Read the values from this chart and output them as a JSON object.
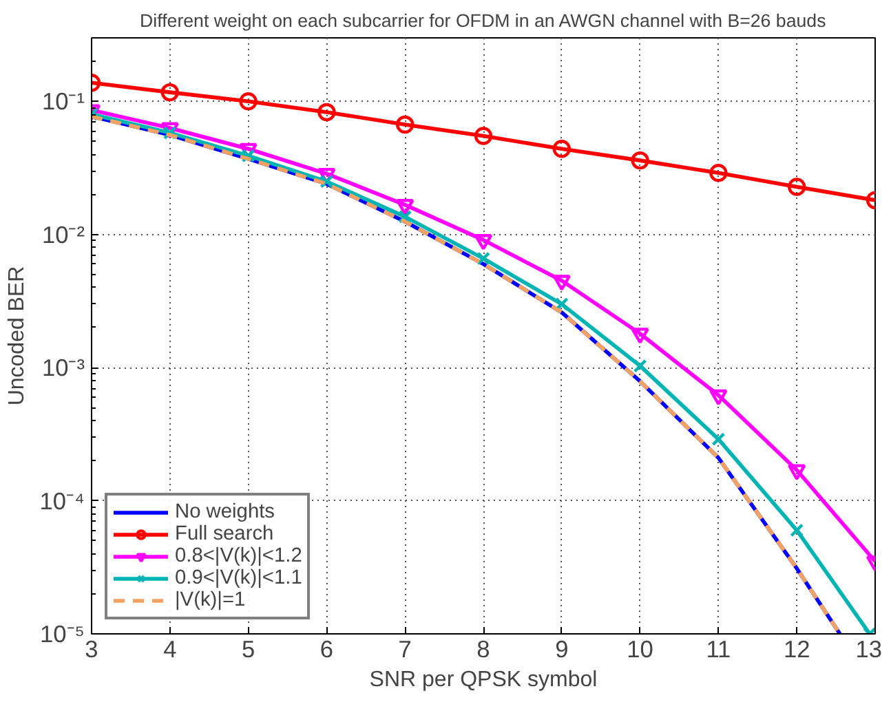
{
  "chart_data": {
    "type": "line",
    "title": "Different weight on each subcarrier for OFDM in an AWGN channel with B=26 bauds",
    "xlabel": "SNR per QPSK symbol",
    "ylabel": "Uncoded BER",
    "log": "y",
    "grid": true,
    "legend": "bottom left",
    "x": [
      3,
      4,
      5,
      6,
      7,
      8,
      9,
      10,
      11,
      12,
      13
    ],
    "xlim": [
      3,
      13
    ],
    "xticks": [
      3,
      4,
      5,
      6,
      7,
      8,
      9,
      10,
      11,
      12,
      13
    ],
    "ylim": [
      1e-05,
      0.3
    ],
    "yticks": [
      {
        "value": 0.1,
        "label": "10⁻¹"
      },
      {
        "value": 0.01,
        "label": "10⁻²"
      },
      {
        "value": 0.001,
        "label": "10⁻³"
      },
      {
        "value": 0.0001,
        "label": "10⁻⁴"
      },
      {
        "value": 1e-05,
        "label": "10⁻⁵"
      }
    ],
    "series": [
      {
        "name": "No weights",
        "color": "#0000ff",
        "marker": "none",
        "line_style": "solid",
        "x": [
          3,
          4,
          5,
          6,
          7,
          8,
          9,
          10,
          11,
          12,
          12.55
        ],
        "values": [
          0.077,
          0.056,
          0.037,
          0.024,
          0.0125,
          0.006,
          0.0026,
          0.00079,
          0.00021,
          3.1e-05,
          1e-05
        ]
      },
      {
        "name": "Full search",
        "color": "#ff0000",
        "marker": "circle",
        "line_style": "solid",
        "values": [
          0.138,
          0.117,
          0.1,
          0.083,
          0.067,
          0.055,
          0.044,
          0.036,
          0.029,
          0.0228,
          0.0181
        ]
      },
      {
        "name": "0.8<|V(k)|<1.2",
        "color": "#ff00ff",
        "marker": "triangle",
        "line_style": "solid",
        "values": [
          0.086,
          0.063,
          0.044,
          0.0286,
          0.0167,
          0.0091,
          0.0045,
          0.0018,
          0.00062,
          0.00017,
          3.5e-05
        ]
      },
      {
        "name": "0.9<|V(k)|<1.1",
        "color": "#00b4b4",
        "marker": "cross",
        "line_style": "solid",
        "x": [
          3,
          4,
          5,
          6,
          7,
          8,
          9,
          10,
          11,
          12,
          12.93
        ],
        "values": [
          0.08,
          0.058,
          0.039,
          0.025,
          0.0136,
          0.0066,
          0.003,
          0.00103,
          0.00029,
          6e-05,
          1e-05
        ]
      },
      {
        "name": "|V(k)|=1",
        "color": "#f4a261",
        "marker": "none",
        "line_style": "dashed",
        "x": [
          3,
          4,
          5,
          6,
          7,
          8,
          9,
          10,
          11,
          12,
          12.55
        ],
        "values": [
          0.077,
          0.056,
          0.037,
          0.024,
          0.0125,
          0.006,
          0.0026,
          0.00079,
          0.00021,
          3.1e-05,
          1e-05
        ]
      }
    ]
  }
}
